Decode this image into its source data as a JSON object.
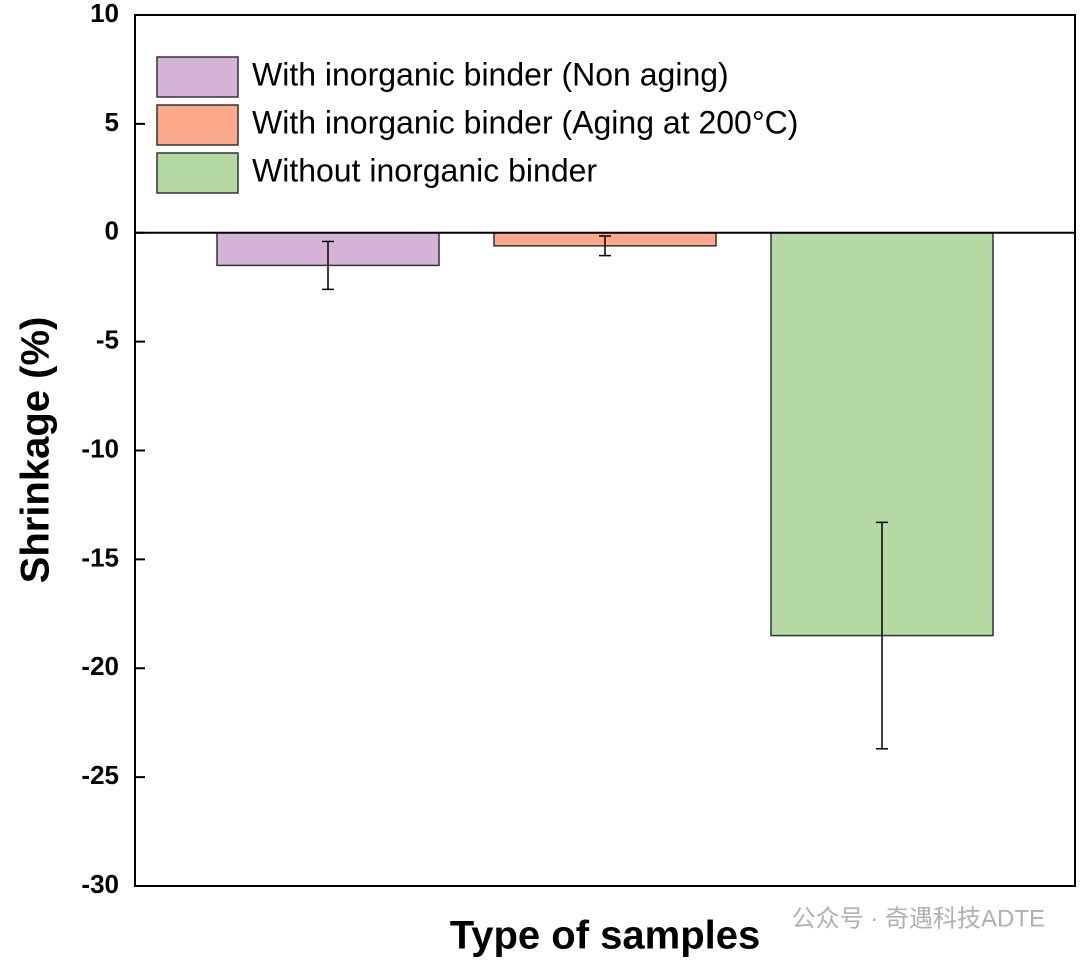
{
  "chart_data": {
    "type": "bar",
    "y_label": "Shrinkage (%)",
    "x_label": "Type of samples",
    "categories": [
      null
    ],
    "series": [
      {
        "name": "With inorganic binder (Non aging)",
        "color": "#d5b3d7",
        "values": [
          -1.5
        ],
        "errors": [
          1.1
        ]
      },
      {
        "name": "With inorganic binder (Aging at 200°C)",
        "color": "#fba98a",
        "values": [
          -0.6
        ],
        "errors": [
          0.45
        ]
      },
      {
        "name": "Without inorganic binder",
        "color": "#b5d9a2",
        "values": [
          -18.5
        ],
        "errors": [
          5.2
        ]
      }
    ],
    "ylim": [
      -30,
      10
    ],
    "yticks": [
      -30,
      -25,
      -20,
      -15,
      -10,
      -5,
      0,
      5,
      10
    ],
    "grid": false,
    "legend": "upper left",
    "watermark": "公众号 · 奇遇科技ADTE"
  }
}
